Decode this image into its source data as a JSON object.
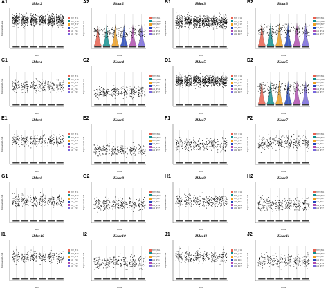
{
  "legend_labels": [
    "WT_P11",
    "WT_P14",
    "WT_P17",
    "rd1_P11",
    "rd1_P14",
    "rd1_P17"
  ],
  "colors": {
    "group_palette": [
      "#e8604f",
      "#0f8f8f",
      "#f0a020",
      "#2244bb",
      "#b04bb0",
      "#7766dd"
    ],
    "point": "#000000",
    "axis": "#222222"
  },
  "common": {
    "ylabel": "Expression Level"
  },
  "chart_data": [
    {
      "id": "A1",
      "type": "scatter",
      "title": "Hdac2",
      "xlabel": "Rod",
      "groups": 6,
      "level": 0.72,
      "spread": 0.52,
      "violin": false
    },
    {
      "id": "A2",
      "type": "scatter",
      "title": "Hdac2",
      "xlabel": "Cone",
      "groups": 6,
      "level": 0.4,
      "spread": 0.55,
      "violin": true
    },
    {
      "id": "B1",
      "type": "scatter",
      "title": "Hdac3",
      "xlabel": "Rod",
      "groups": 6,
      "level": 0.68,
      "spread": 0.55,
      "violin": false
    },
    {
      "id": "B2",
      "type": "scatter",
      "title": "Hdac3",
      "xlabel": "Cone",
      "groups": 6,
      "level": 0.45,
      "spread": 0.6,
      "violin": true
    },
    {
      "id": "C1",
      "type": "scatter",
      "title": "Hdac4",
      "xlabel": "Rod",
      "groups": 6,
      "level": 0.5,
      "spread": 0.55,
      "violin": false
    },
    {
      "id": "C2",
      "type": "scatter",
      "title": "Hdac4",
      "xlabel": "Cone",
      "groups": 6,
      "level": 0.35,
      "spread": 0.5,
      "violin": false
    },
    {
      "id": "D1",
      "type": "scatter",
      "title": "Hdac5",
      "xlabel": "Rod",
      "groups": 6,
      "level": 0.65,
      "spread": 0.5,
      "violin": false
    },
    {
      "id": "D2",
      "type": "scatter",
      "title": "Hdac5",
      "xlabel": "Cone",
      "groups": 6,
      "level": 0.45,
      "spread": 0.55,
      "violin": true
    },
    {
      "id": "E1",
      "type": "scatter",
      "title": "Hdac6",
      "xlabel": "Rod",
      "groups": 6,
      "level": 0.6,
      "spread": 0.5,
      "violin": false
    },
    {
      "id": "E2",
      "type": "scatter",
      "title": "Hdac6",
      "xlabel": "Cone",
      "groups": 6,
      "level": 0.35,
      "spread": 0.5,
      "violin": false
    },
    {
      "id": "F1",
      "type": "scatter",
      "title": "Hdac7",
      "xlabel": "Rod",
      "groups": 6,
      "level": 0.5,
      "spread": 0.6,
      "violin": false
    },
    {
      "id": "F2",
      "type": "scatter",
      "title": "Hdac7",
      "xlabel": "Cone",
      "groups": 6,
      "level": 0.55,
      "spread": 0.6,
      "violin": false
    },
    {
      "id": "G1",
      "type": "scatter",
      "title": "Hdac8",
      "xlabel": "Rod",
      "groups": 6,
      "level": 0.55,
      "spread": 0.55,
      "violin": false
    },
    {
      "id": "G2",
      "type": "scatter",
      "title": "Hdac8",
      "xlabel": "Cone",
      "groups": 6,
      "level": 0.45,
      "spread": 0.55,
      "violin": false
    },
    {
      "id": "H1",
      "type": "scatter",
      "title": "Hdac9",
      "xlabel": "Rod",
      "groups": 6,
      "level": 0.55,
      "spread": 0.5,
      "violin": false
    },
    {
      "id": "H2",
      "type": "scatter",
      "title": "Hdac9",
      "xlabel": "Cone",
      "groups": 6,
      "level": 0.45,
      "spread": 0.6,
      "violin": false
    },
    {
      "id": "I1",
      "type": "scatter",
      "title": "Hdac10",
      "xlabel": "Rod",
      "groups": 6,
      "level": 0.6,
      "spread": 0.55,
      "violin": false
    },
    {
      "id": "I2",
      "type": "scatter",
      "title": "Hdac10",
      "xlabel": "Cone",
      "groups": 6,
      "level": 0.45,
      "spread": 0.6,
      "violin": false
    },
    {
      "id": "J1",
      "type": "scatter",
      "title": "Hdac11",
      "xlabel": "Rod",
      "groups": 6,
      "level": 0.6,
      "spread": 0.55,
      "violin": false
    },
    {
      "id": "J2",
      "type": "scatter",
      "title": "Hdac11",
      "xlabel": "Cone",
      "groups": 6,
      "level": 0.5,
      "spread": 0.6,
      "violin": false
    }
  ]
}
